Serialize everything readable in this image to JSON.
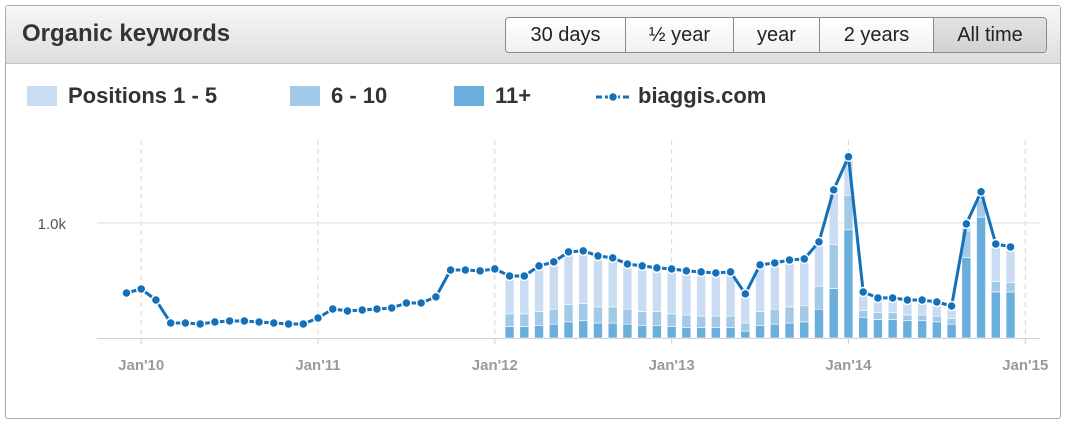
{
  "header": {
    "title": "Organic keywords",
    "buttons": [
      "30 days",
      "½ year",
      "year",
      "2 years",
      "All time"
    ]
  },
  "chart_data": {
    "type": "combo",
    "stacked": true,
    "x": [
      "2009-12",
      "2010-01",
      "2010-02",
      "2010-03",
      "2010-04",
      "2010-05",
      "2010-06",
      "2010-07",
      "2010-08",
      "2010-09",
      "2010-10",
      "2010-11",
      "2010-12",
      "2011-01",
      "2011-02",
      "2011-03",
      "2011-04",
      "2011-05",
      "2011-06",
      "2011-07",
      "2011-08",
      "2011-09",
      "2011-10",
      "2011-11",
      "2011-12",
      "2012-01",
      "2012-02",
      "2012-03",
      "2012-04",
      "2012-05",
      "2012-06",
      "2012-07",
      "2012-08",
      "2012-09",
      "2012-10",
      "2012-11",
      "2012-12",
      "2013-01",
      "2013-02",
      "2013-03",
      "2013-04",
      "2013-05",
      "2013-06",
      "2013-07",
      "2013-08",
      "2013-09",
      "2013-10",
      "2013-11",
      "2013-12",
      "2014-01",
      "2014-02",
      "2014-03",
      "2014-04",
      "2014-05",
      "2014-06",
      "2014-07",
      "2014-08",
      "2014-09",
      "2014-10",
      "2014-11",
      "2014-12"
    ],
    "series": [
      {
        "name": "Positions 1 - 5",
        "type": "bar",
        "color": "#c9dcf1",
        "values": [
          null,
          null,
          null,
          null,
          null,
          null,
          null,
          null,
          null,
          null,
          null,
          null,
          null,
          null,
          null,
          null,
          null,
          null,
          null,
          null,
          null,
          null,
          null,
          null,
          null,
          null,
          329,
          329,
          396,
          411,
          458,
          457,
          443,
          426,
          393,
          396,
          379,
          390,
          383,
          384,
          375,
          384,
          253,
          405,
          402,
          408,
          407,
          385,
          477,
          334,
          160,
          128,
          128,
          130,
          130,
          123,
          108,
          61,
          70,
          327,
          311
        ]
      },
      {
        "name": "6 - 10",
        "type": "bar",
        "color": "#a2cae6",
        "values": [
          null,
          null,
          null,
          null,
          null,
          null,
          null,
          null,
          null,
          null,
          null,
          null,
          null,
          null,
          null,
          null,
          null,
          null,
          null,
          null,
          null,
          null,
          null,
          null,
          null,
          null,
          110,
          110,
          120,
          130,
          150,
          150,
          140,
          140,
          130,
          120,
          120,
          110,
          110,
          100,
          100,
          100,
          70,
          120,
          130,
          140,
          140,
          200,
          380,
          300,
          60,
          60,
          60,
          50,
          50,
          50,
          50,
          230,
          150,
          90,
          80
        ]
      },
      {
        "name": "11+",
        "type": "bar",
        "color": "#6aaedb",
        "values": [
          null,
          null,
          null,
          null,
          null,
          null,
          null,
          null,
          null,
          null,
          null,
          null,
          null,
          null,
          null,
          null,
          null,
          null,
          null,
          null,
          null,
          null,
          null,
          null,
          null,
          null,
          100,
          100,
          110,
          120,
          140,
          150,
          130,
          130,
          120,
          110,
          110,
          100,
          90,
          90,
          90,
          90,
          60,
          110,
          120,
          130,
          140,
          250,
          430,
          940,
          180,
          160,
          160,
          150,
          150,
          140,
          120,
          700,
          1050,
          400,
          400
        ]
      },
      {
        "name": "biaggis.com",
        "type": "line",
        "color": "#1470b8",
        "values": [
          391,
          426,
          330,
          130,
          130,
          122,
          139,
          148,
          148,
          139,
          130,
          122,
          122,
          174,
          252,
          235,
          243,
          252,
          261,
          304,
          304,
          357,
          591,
          591,
          583,
          600,
          539,
          539,
          626,
          661,
          748,
          757,
          713,
          696,
          643,
          626,
          609,
          600,
          583,
          574,
          565,
          574,
          383,
          635,
          652,
          678,
          687,
          835,
          1287,
          1574,
          400,
          348,
          348,
          330,
          330,
          313,
          278,
          991,
          1270,
          817,
          791
        ]
      }
    ],
    "xlim": [
      "2009-10",
      "2015-02"
    ],
    "xticks": [
      {
        "value": "2010-01",
        "label": "Jan'10"
      },
      {
        "value": "2011-01",
        "label": "Jan'11"
      },
      {
        "value": "2012-01",
        "label": "Jan'12"
      },
      {
        "value": "2013-01",
        "label": "Jan'13"
      },
      {
        "value": "2014-01",
        "label": "Jan'14"
      },
      {
        "value": "2015-01",
        "label": "Jan'15"
      }
    ],
    "ylim": [
      0,
      1720
    ],
    "yticks": [
      {
        "value": 1000,
        "label": "1.0k"
      }
    ],
    "grid": true
  }
}
